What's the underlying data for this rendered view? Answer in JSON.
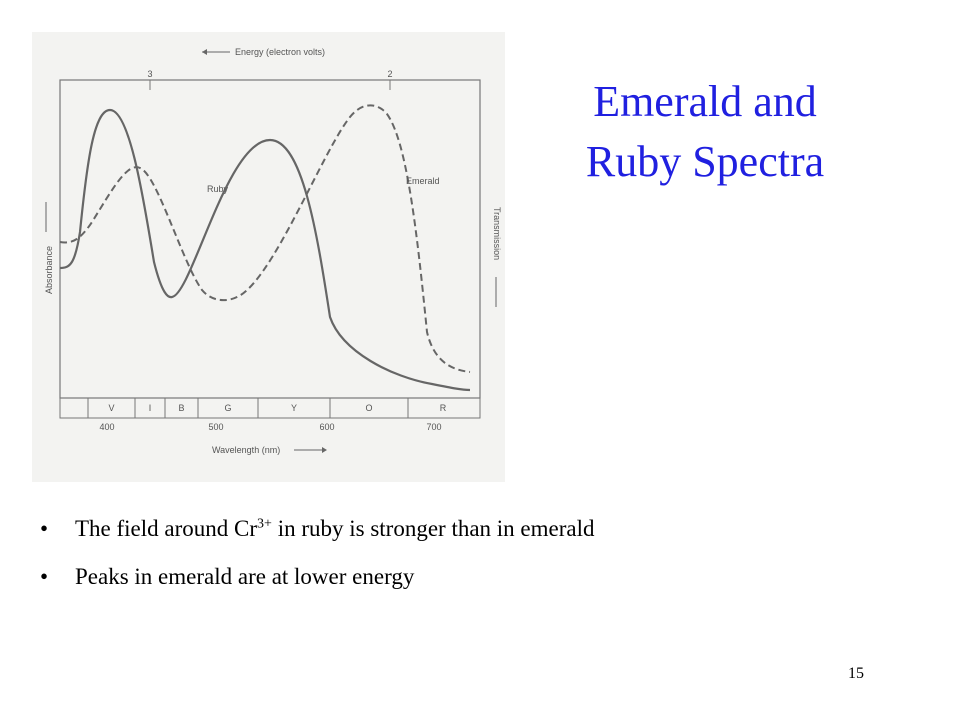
{
  "slide": {
    "title": "Emerald and Ruby Spectra",
    "figure": {
      "top_axis_label": "Energy (electron volts)",
      "top_ticks": [
        "3",
        "2"
      ],
      "ruby_label": "Ruby",
      "emerald_label": "Emerald",
      "left_label": "Absorbance",
      "right_label": "Transmission",
      "bands": [
        "V",
        "I",
        "B",
        "G",
        "Y",
        "O",
        "R"
      ],
      "bottom_ticks": [
        "400",
        "500",
        "600",
        "700"
      ],
      "bottom_axis_label": "Wavelength (nm)"
    },
    "bullets": [
      {
        "before": "The field around Cr",
        "sup": "3+",
        "after": " in ruby is stronger than in emerald"
      },
      {
        "before": "Peaks in emerald are at lower energy"
      }
    ],
    "page_number": "15"
  }
}
